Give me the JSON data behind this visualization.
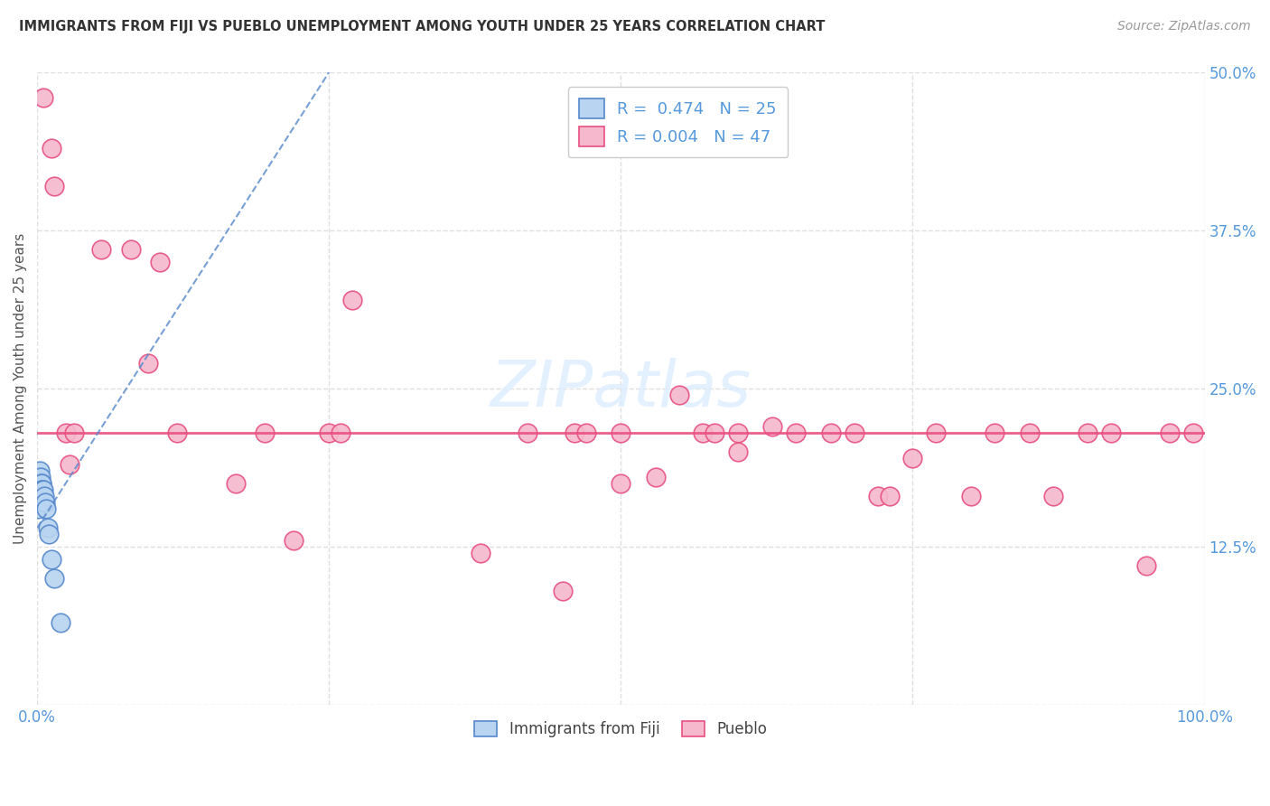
{
  "title": "IMMIGRANTS FROM FIJI VS PUEBLO UNEMPLOYMENT AMONG YOUTH UNDER 25 YEARS CORRELATION CHART",
  "source": "Source: ZipAtlas.com",
  "ylabel": "Unemployment Among Youth under 25 years",
  "fiji_R": 0.474,
  "fiji_N": 25,
  "pueblo_R": 0.004,
  "pueblo_N": 47,
  "xlim": [
    0,
    1.0
  ],
  "ylim": [
    0,
    0.5
  ],
  "fiji_color": "#b8d4f0",
  "pueblo_color": "#f5b8cc",
  "fiji_edge_color": "#5588cc",
  "pueblo_edge_color": "#e85080",
  "fiji_line_color": "#5588cc",
  "pueblo_line_color": "#e85080",
  "title_color": "#333333",
  "source_color": "#999999",
  "tick_color": "#5599dd",
  "grid_color": "#e0e0e0",
  "background_color": "#ffffff",
  "watermark_color": "#ddeeff",
  "pueblo_line_y": 0.215,
  "fiji_trend_x0": 0.0,
  "fiji_trend_y0": 0.14,
  "fiji_trend_x1": 0.25,
  "fiji_trend_y1": 0.5,
  "fiji_x": [
    0.0005,
    0.0005,
    0.001,
    0.001,
    0.0015,
    0.0015,
    0.002,
    0.002,
    0.0025,
    0.003,
    0.003,
    0.003,
    0.0035,
    0.004,
    0.004,
    0.0045,
    0.005,
    0.006,
    0.007,
    0.008,
    0.009,
    0.01,
    0.012,
    0.015,
    0.02
  ],
  "fiji_y": [
    0.155,
    0.165,
    0.17,
    0.175,
    0.175,
    0.18,
    0.175,
    0.185,
    0.175,
    0.17,
    0.175,
    0.18,
    0.175,
    0.175,
    0.17,
    0.17,
    0.17,
    0.165,
    0.16,
    0.155,
    0.14,
    0.135,
    0.115,
    0.1,
    0.065
  ],
  "pueblo_x": [
    0.005,
    0.012,
    0.015,
    0.025,
    0.028,
    0.032,
    0.055,
    0.08,
    0.095,
    0.105,
    0.12,
    0.17,
    0.195,
    0.22,
    0.25,
    0.26,
    0.27,
    0.38,
    0.42,
    0.45,
    0.46,
    0.47,
    0.5,
    0.53,
    0.57,
    0.58,
    0.6,
    0.63,
    0.65,
    0.68,
    0.7,
    0.72,
    0.73,
    0.75,
    0.77,
    0.8,
    0.82,
    0.85,
    0.87,
    0.9,
    0.92,
    0.95,
    0.97,
    0.99,
    0.55,
    0.6,
    0.5
  ],
  "pueblo_y": [
    0.48,
    0.44,
    0.41,
    0.215,
    0.19,
    0.215,
    0.36,
    0.36,
    0.27,
    0.35,
    0.215,
    0.175,
    0.215,
    0.13,
    0.215,
    0.215,
    0.32,
    0.12,
    0.215,
    0.09,
    0.215,
    0.215,
    0.215,
    0.18,
    0.215,
    0.215,
    0.215,
    0.22,
    0.215,
    0.215,
    0.215,
    0.165,
    0.165,
    0.195,
    0.215,
    0.165,
    0.215,
    0.215,
    0.165,
    0.215,
    0.215,
    0.11,
    0.215,
    0.215,
    0.245,
    0.2,
    0.175
  ]
}
